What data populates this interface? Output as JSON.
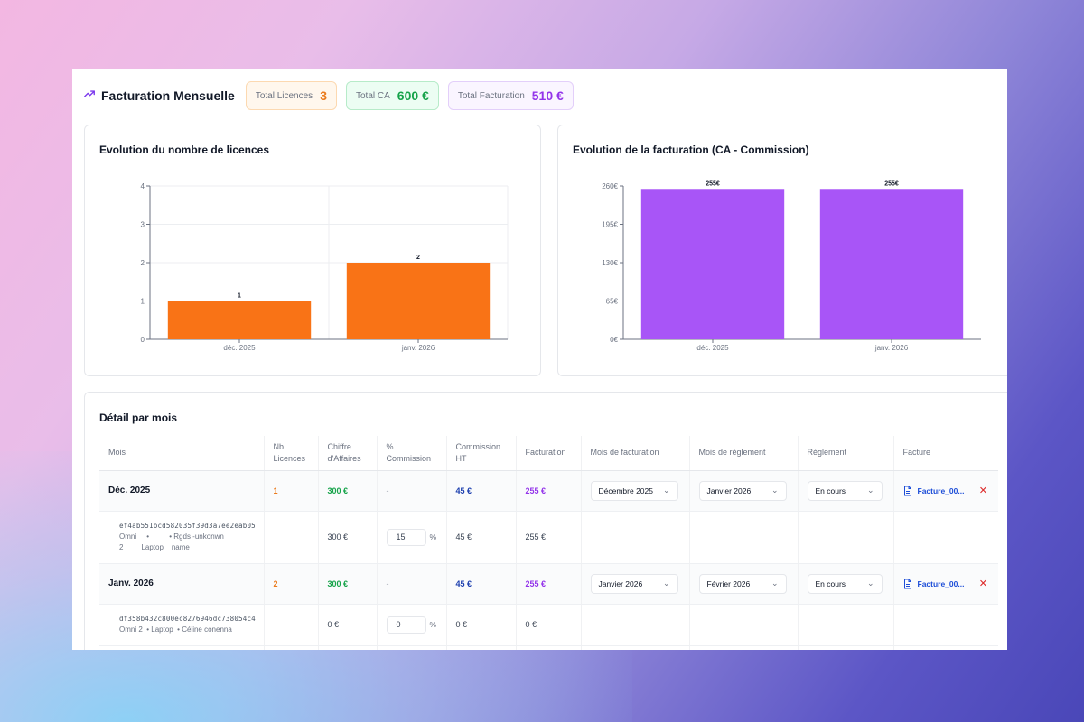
{
  "header": {
    "title": "Facturation Mensuelle",
    "title_icon": "trending-up-icon",
    "stats": [
      {
        "label": "Total Licences",
        "value": "3",
        "color": "#ea7b1d"
      },
      {
        "label": "Total CA",
        "value": "600 €",
        "color": "#16a34a"
      },
      {
        "label": "Total Facturation",
        "value": "510 €",
        "color": "#9333ea"
      }
    ]
  },
  "licences_chart": {
    "title": "Evolution du nombre de licences"
  },
  "facturation_chart": {
    "title": "Evolution de la facturation (CA - Commission)"
  },
  "chart_data": [
    {
      "type": "bar",
      "title": "Evolution du nombre de licences",
      "categories": [
        "déc. 2025",
        "janv. 2026"
      ],
      "values": [
        1,
        2
      ],
      "data_labels": [
        "1",
        "2"
      ],
      "yticks": [
        "0",
        "1",
        "2",
        "3",
        "4"
      ],
      "ylim": [
        0,
        4
      ],
      "color": "#f97316",
      "grid": true
    },
    {
      "type": "bar",
      "title": "Evolution de la facturation (CA - Commission)",
      "categories": [
        "déc. 2025",
        "janv. 2026"
      ],
      "values": [
        255,
        255
      ],
      "data_labels": [
        "255€",
        "255€"
      ],
      "yticks": [
        "0€",
        "65€",
        "130€",
        "195€",
        "260€"
      ],
      "ylim": [
        0,
        260
      ],
      "color": "#a855f7",
      "grid": false
    }
  ],
  "table": {
    "title": "Détail par mois",
    "headers": [
      "Mois",
      "Nb Licences",
      "Chiffre d'Affaires",
      "% Commission",
      "Commission HT",
      "Facturation",
      "Mois de facturation",
      "Mois de règlement",
      "Règlement",
      "Facture"
    ],
    "months": [
      {
        "mois": "Déc. 2025",
        "licences": "1",
        "ca": "300 €",
        "pct": "-",
        "commission": "45 €",
        "facturation": "255 €",
        "mois_facturation": "Décembre 2025",
        "mois_reglement": "Janvier 2026",
        "reglement": "En cours",
        "facture": "Facture_00...",
        "detail": {
          "hash": "ef4ab551bcd582035f39d3a7ee2eab05",
          "line1": "Omni     •          • Rgds -unkonwn",
          "line2": "2         Laptop    name",
          "ca": "300 €",
          "pct": "15",
          "pct_sign": "%",
          "commission": "45 €",
          "facturation": "255 €"
        }
      },
      {
        "mois": "Janv. 2026",
        "licences": "2",
        "ca": "300 €",
        "pct": "-",
        "commission": "45 €",
        "facturation": "255 €",
        "mois_facturation": "Janvier 2026",
        "mois_reglement": "Février 2026",
        "reglement": "En cours",
        "facture": "Facture_00...",
        "detail": {
          "hash": "df358b432c800ec8276946dc738054c4",
          "line1": "Omni 2  • Laptop  • Céline conenna",
          "ca": "0 €",
          "pct": "0",
          "pct_sign": "%",
          "commission": "0 €",
          "facturation": "0 €"
        }
      }
    ]
  }
}
